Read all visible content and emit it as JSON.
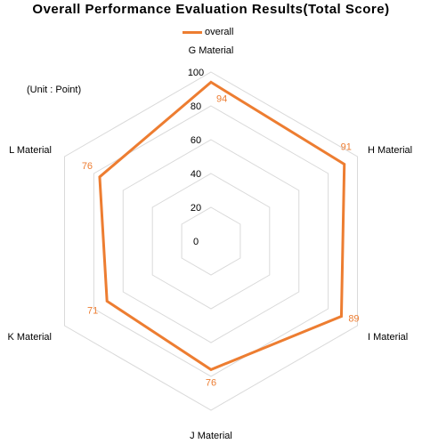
{
  "chart_data": {
    "type": "radar",
    "title": "Overall Performance Evaluation Results(Total Score)",
    "unit_note": "(Unit : Point)",
    "categories": [
      "G Material",
      "H Material",
      "I Material",
      "J Material",
      "K Material",
      "L Material"
    ],
    "series": [
      {
        "name": "overall",
        "values": [
          94,
          91,
          89,
          76,
          71,
          76
        ]
      }
    ],
    "radial_ticks": [
      0,
      20,
      40,
      60,
      80,
      100
    ],
    "rlim": [
      0,
      100
    ],
    "legend_position": "top",
    "grid": true,
    "colors": {
      "series": "#ED7D31",
      "grid": "#D9D9D9",
      "value_label": "#ED7D31"
    }
  }
}
